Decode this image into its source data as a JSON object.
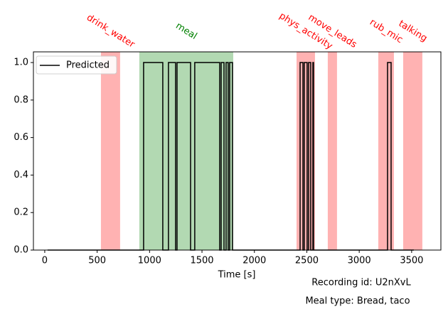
{
  "chart_data": {
    "type": "line",
    "xlabel": "Time [s]",
    "xlim": [
      -108,
      3779
    ],
    "xticks": [
      0,
      500,
      1000,
      1500,
      2000,
      2500,
      3000,
      3500
    ],
    "ylim": [
      0,
      1.057
    ],
    "yticks": [
      {
        "value": 0,
        "label": "0.0"
      },
      0.2,
      0.4,
      0.6,
      0.8,
      {
        "value": 1,
        "label": "1.0"
      }
    ],
    "legend": "upper left",
    "series": [
      {
        "name": "Predicted",
        "color": "#000000",
        "x": [
          27,
          943,
          943,
          1126,
          1126,
          1180,
          1180,
          1248,
          1248,
          1262,
          1262,
          1391,
          1391,
          1431,
          1431,
          1669,
          1669,
          1683,
          1683,
          1710,
          1710,
          1730,
          1730,
          1750,
          1750,
          1764,
          1764,
          1791,
          1791,
          2436,
          2436,
          2463,
          2463,
          2476,
          2476,
          2503,
          2503,
          2517,
          2517,
          2537,
          2537,
          2558,
          2558,
          2564,
          2564,
          3270,
          3270,
          3304,
          3304,
          3521
        ],
        "values": [
          0,
          0,
          1,
          1,
          0,
          0,
          1,
          1,
          0,
          0,
          1,
          1,
          0,
          0,
          1,
          1,
          0,
          0,
          1,
          1,
          0,
          0,
          1,
          1,
          0,
          0,
          1,
          1,
          0,
          0,
          1,
          1,
          0,
          0,
          1,
          1,
          0,
          0,
          1,
          1,
          0,
          0,
          1,
          1,
          0,
          0,
          1,
          1,
          0,
          0
        ]
      }
    ],
    "spans": [
      {
        "label": "drink_water",
        "start": 536,
        "end": 719,
        "color": "red"
      },
      {
        "label": "meal",
        "start": 902,
        "end": 1798,
        "color": "green"
      },
      {
        "label": "phys_activity",
        "start": 2402,
        "end": 2578,
        "color": "red"
      },
      {
        "label": "move_leads",
        "start": 2700,
        "end": 2788,
        "color": "red"
      },
      {
        "label": "rub_mic",
        "start": 3182,
        "end": 3331,
        "color": "red"
      },
      {
        "label": "talking",
        "start": 3419,
        "end": 3602,
        "color": "red"
      }
    ],
    "annotations": [
      "Recording id: U2nXvL",
      "Meal type: Bread, taco"
    ]
  }
}
